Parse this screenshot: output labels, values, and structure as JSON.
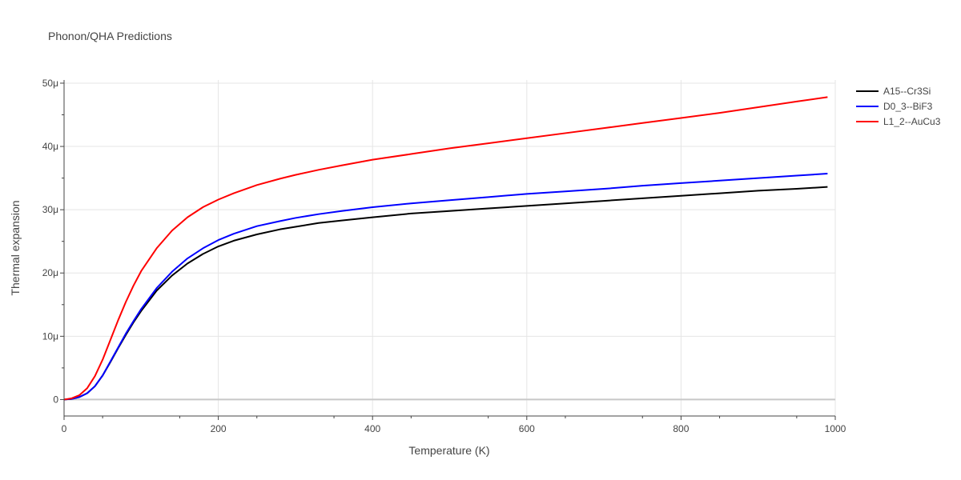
{
  "chart_data": {
    "type": "line",
    "title": "Phonon/QHA Predictions",
    "xlabel": "Temperature (K)",
    "ylabel": "Thermal expansion",
    "xlim": [
      0,
      1000
    ],
    "ylim": [
      -2.6e-06,
      5.05e-05
    ],
    "grid": true,
    "legend_position": "top-right",
    "x_ticks": [
      {
        "value": 0,
        "label": "0"
      },
      {
        "value": 200,
        "label": "200"
      },
      {
        "value": 400,
        "label": "400"
      },
      {
        "value": 600,
        "label": "600"
      },
      {
        "value": 800,
        "label": "800"
      },
      {
        "value": 1000,
        "label": "1000"
      }
    ],
    "y_ticks": [
      {
        "value": 0,
        "label": "0"
      },
      {
        "value": 1e-05,
        "label": "10μ"
      },
      {
        "value": 2e-05,
        "label": "20μ"
      },
      {
        "value": 3e-05,
        "label": "30μ"
      },
      {
        "value": 4e-05,
        "label": "40μ"
      },
      {
        "value": 5e-05,
        "label": "50μ"
      }
    ],
    "series": [
      {
        "name": "A15--Cr3Si",
        "color": "#000000",
        "x": [
          0,
          10,
          20,
          30,
          40,
          50,
          60,
          70,
          80,
          90,
          100,
          120,
          140,
          160,
          180,
          200,
          220,
          250,
          280,
          300,
          330,
          360,
          400,
          450,
          500,
          550,
          600,
          650,
          700,
          750,
          800,
          850,
          900,
          950,
          990
        ],
        "y": [
          0,
          1e-07,
          4e-07,
          1e-06,
          2.1e-06,
          3.8e-06,
          5.9e-06,
          8.1e-06,
          1.02e-05,
          1.22e-05,
          1.4e-05,
          1.72e-05,
          1.96e-05,
          2.15e-05,
          2.3e-05,
          2.42e-05,
          2.51e-05,
          2.61e-05,
          2.69e-05,
          2.73e-05,
          2.79e-05,
          2.83e-05,
          2.88e-05,
          2.94e-05,
          2.98e-05,
          3.02e-05,
          3.06e-05,
          3.1e-05,
          3.14e-05,
          3.18e-05,
          3.22e-05,
          3.26e-05,
          3.3e-05,
          3.33e-05,
          3.36e-05
        ]
      },
      {
        "name": "D0_3--BiF3",
        "color": "#0000ff",
        "x": [
          0,
          10,
          20,
          30,
          40,
          50,
          60,
          70,
          80,
          90,
          100,
          120,
          140,
          160,
          180,
          200,
          220,
          250,
          280,
          300,
          330,
          360,
          400,
          450,
          500,
          550,
          600,
          650,
          700,
          750,
          800,
          850,
          900,
          950,
          990
        ],
        "y": [
          0,
          1e-07,
          4e-07,
          1e-06,
          2.1e-06,
          3.8e-06,
          6e-06,
          8.2e-06,
          1.04e-05,
          1.24e-05,
          1.43e-05,
          1.76e-05,
          2.02e-05,
          2.23e-05,
          2.39e-05,
          2.52e-05,
          2.62e-05,
          2.74e-05,
          2.82e-05,
          2.87e-05,
          2.93e-05,
          2.98e-05,
          3.04e-05,
          3.1e-05,
          3.15e-05,
          3.2e-05,
          3.25e-05,
          3.29e-05,
          3.33e-05,
          3.38e-05,
          3.42e-05,
          3.46e-05,
          3.5e-05,
          3.54e-05,
          3.57e-05
        ]
      },
      {
        "name": "L1_2--AuCu3",
        "color": "#ff0000",
        "x": [
          0,
          10,
          20,
          30,
          40,
          50,
          60,
          70,
          80,
          90,
          100,
          120,
          140,
          160,
          180,
          200,
          220,
          250,
          280,
          300,
          330,
          360,
          400,
          450,
          500,
          550,
          600,
          650,
          700,
          750,
          800,
          850,
          900,
          950,
          990
        ],
        "y": [
          0,
          2e-07,
          7e-07,
          1.8e-06,
          3.7e-06,
          6.3e-06,
          9.4e-06,
          1.25e-05,
          1.54e-05,
          1.8e-05,
          2.03e-05,
          2.39e-05,
          2.67e-05,
          2.88e-05,
          3.04e-05,
          3.16e-05,
          3.26e-05,
          3.39e-05,
          3.49e-05,
          3.55e-05,
          3.63e-05,
          3.7e-05,
          3.79e-05,
          3.88e-05,
          3.97e-05,
          4.05e-05,
          4.13e-05,
          4.21e-05,
          4.29e-05,
          4.37e-05,
          4.45e-05,
          4.53e-05,
          4.62e-05,
          4.71e-05,
          4.78e-05
        ]
      }
    ]
  }
}
